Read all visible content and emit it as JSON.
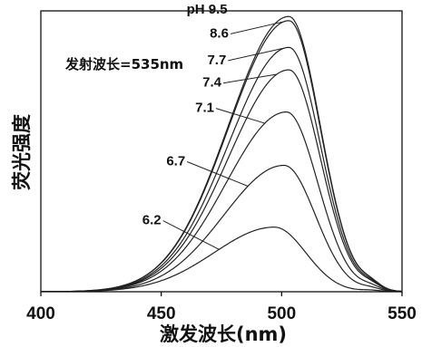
{
  "chart_data": {
    "type": "line",
    "title": "",
    "xlabel": "激发波长(nm)",
    "ylabel": "荧光强度",
    "xlim": [
      400,
      550
    ],
    "ylim": [
      0,
      1
    ],
    "xticks": [
      400,
      450,
      500,
      550
    ],
    "grid": false,
    "annotation": "发射波长=535nm",
    "series": [
      {
        "name": "pH 9.5",
        "peak_x": 503,
        "peak_y": 0.98
      },
      {
        "name": "8.6",
        "peak_x": 503,
        "peak_y": 0.965
      },
      {
        "name": "7.7",
        "peak_x": 503,
        "peak_y": 0.87
      },
      {
        "name": "7.4",
        "peak_x": 503,
        "peak_y": 0.79
      },
      {
        "name": "7.1",
        "peak_x": 502,
        "peak_y": 0.64
      },
      {
        "name": "6.7",
        "peak_x": 501,
        "peak_y": 0.45
      },
      {
        "name": "6.2",
        "peak_x": 497,
        "peak_y": 0.23
      }
    ]
  }
}
